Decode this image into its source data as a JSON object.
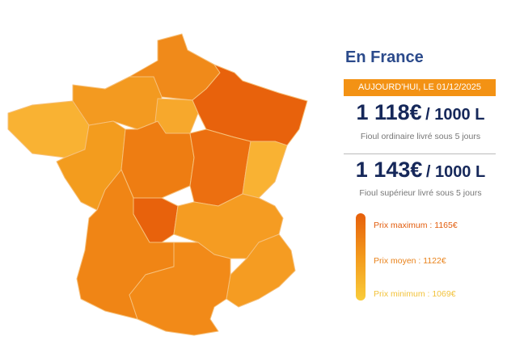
{
  "title": "En France",
  "date_banner": "AUJOURD'HUI, LE 01/12/2025",
  "prices": [
    {
      "amount": "1 118€",
      "unit": "/ 1000 L",
      "description": "Fioul ordinaire livré sous 5 jours"
    },
    {
      "amount": "1 143€",
      "unit": "/ 1000 L",
      "description": "Fioul supérieur livré sous 5 jours"
    }
  ],
  "legend": [
    {
      "label": "Prix maximum : 1165€"
    },
    {
      "label": "Prix moyen : 1122€"
    },
    {
      "label": "Prix minimum : 1069€"
    }
  ]
}
